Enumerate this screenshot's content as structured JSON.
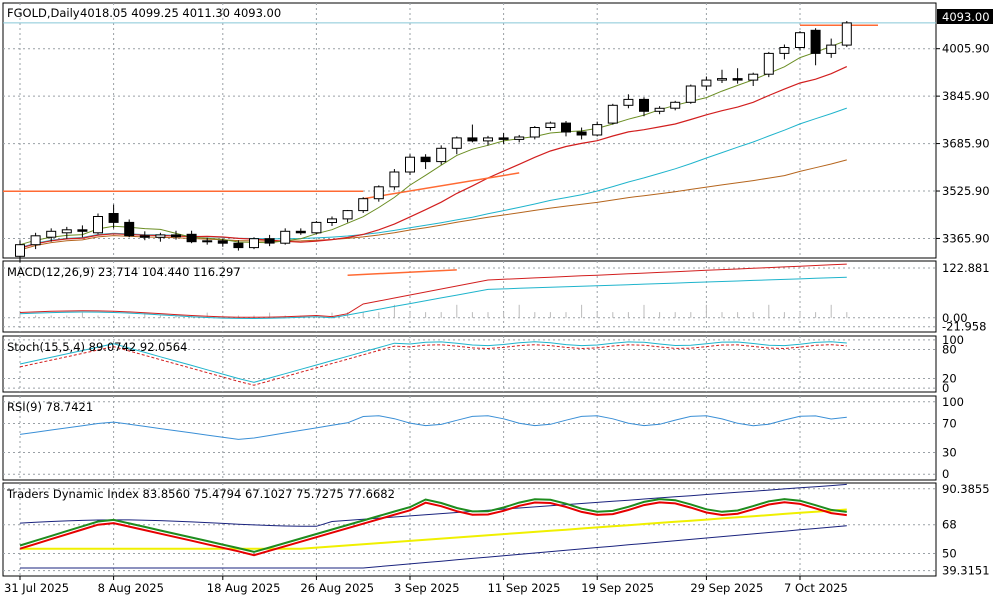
{
  "chart_data": {
    "type": "candlestick",
    "symbol": "FGOLD,Daily",
    "ohlc_header": "4018.05 4099.25 4011.30 4093.00",
    "current_price_label": "4093.00",
    "price_ticks": [
      "4005.90",
      "3845.90",
      "3685.90",
      "3525.90",
      "3365.90"
    ],
    "price_tick_values": [
      4005.9,
      3845.9,
      3685.9,
      3525.9,
      3365.9
    ],
    "date_labels": [
      "31 Jul 2025",
      "8 Aug 2025",
      "18 Aug 2025",
      "26 Aug 2025",
      "3 Sep 2025",
      "11 Sep 2025",
      "19 Sep 2025",
      "29 Sep 2025",
      "7 Oct 2025"
    ],
    "date_label_index": [
      0,
      6,
      13,
      19,
      25,
      31,
      37,
      44,
      50
    ],
    "ohlc": [
      [
        3306,
        3360,
        3285,
        3345
      ],
      [
        3345,
        3385,
        3330,
        3375
      ],
      [
        3370,
        3400,
        3355,
        3390
      ],
      [
        3385,
        3405,
        3365,
        3395
      ],
      [
        3395,
        3410,
        3370,
        3390
      ],
      [
        3385,
        3450,
        3380,
        3440
      ],
      [
        3450,
        3480,
        3400,
        3420
      ],
      [
        3420,
        3430,
        3370,
        3375
      ],
      [
        3375,
        3390,
        3360,
        3370
      ],
      [
        3370,
        3385,
        3355,
        3378
      ],
      [
        3378,
        3392,
        3362,
        3372
      ],
      [
        3380,
        3392,
        3350,
        3355
      ],
      [
        3355,
        3368,
        3345,
        3358
      ],
      [
        3358,
        3365,
        3338,
        3350
      ],
      [
        3350,
        3360,
        3325,
        3335
      ],
      [
        3335,
        3370,
        3330,
        3365
      ],
      [
        3365,
        3378,
        3340,
        3350
      ],
      [
        3350,
        3400,
        3345,
        3390
      ],
      [
        3390,
        3400,
        3378,
        3385
      ],
      [
        3385,
        3425,
        3380,
        3420
      ],
      [
        3420,
        3440,
        3408,
        3432
      ],
      [
        3432,
        3462,
        3420,
        3460
      ],
      [
        3460,
        3505,
        3452,
        3500
      ],
      [
        3500,
        3545,
        3490,
        3540
      ],
      [
        3540,
        3600,
        3530,
        3590
      ],
      [
        3590,
        3650,
        3580,
        3640
      ],
      [
        3640,
        3650,
        3600,
        3625
      ],
      [
        3625,
        3680,
        3615,
        3670
      ],
      [
        3670,
        3710,
        3650,
        3705
      ],
      [
        3705,
        3750,
        3690,
        3695
      ],
      [
        3695,
        3712,
        3680,
        3705
      ],
      [
        3705,
        3722,
        3685,
        3700
      ],
      [
        3700,
        3715,
        3690,
        3708
      ],
      [
        3708,
        3745,
        3700,
        3740
      ],
      [
        3740,
        3760,
        3730,
        3755
      ],
      [
        3755,
        3762,
        3710,
        3725
      ],
      [
        3725,
        3740,
        3700,
        3715
      ],
      [
        3715,
        3760,
        3710,
        3750
      ],
      [
        3755,
        3820,
        3750,
        3815
      ],
      [
        3815,
        3852,
        3805,
        3835
      ],
      [
        3835,
        3842,
        3778,
        3795
      ],
      [
        3795,
        3812,
        3785,
        3805
      ],
      [
        3805,
        3830,
        3798,
        3825
      ],
      [
        3825,
        3885,
        3820,
        3880
      ],
      [
        3880,
        3912,
        3865,
        3900
      ],
      [
        3900,
        3935,
        3890,
        3905
      ],
      [
        3905,
        3940,
        3888,
        3900
      ],
      [
        3900,
        3925,
        3880,
        3920
      ],
      [
        3920,
        3995,
        3910,
        3990
      ],
      [
        3990,
        4020,
        3970,
        4010
      ],
      [
        4010,
        4065,
        4000,
        4060
      ],
      [
        4068,
        4075,
        3950,
        3990
      ],
      [
        3990,
        4040,
        3975,
        4018
      ],
      [
        4018,
        4099.25,
        4011.3,
        4093
      ]
    ],
    "indicators": {
      "macd": {
        "label": "MACD(12,26,9) 23.714 104.440 116.297",
        "ticks": [
          "122.881",
          "0.00",
          "-21.958"
        ],
        "tick_values": [
          122.881,
          0,
          -21.958
        ]
      },
      "stoch": {
        "label": "Stoch(15,5,4) 89.0742 92.0564",
        "ticks": [
          "100",
          "80",
          "20",
          "0"
        ],
        "tick_values": [
          100,
          80,
          20,
          0
        ]
      },
      "rsi": {
        "label": "RSI(9) 78.7421",
        "ticks": [
          "100",
          "70",
          "30",
          "0"
        ],
        "tick_values": [
          100,
          70,
          30,
          0
        ]
      },
      "tdi": {
        "label": "Traders Dynamic Index 83.8560 75.4794 67.1027 75.7275 77.6682",
        "ticks": [
          "90.3855",
          "68",
          "50",
          "39.3151"
        ],
        "tick_values": [
          90.3855,
          68,
          50,
          39.3151
        ]
      }
    },
    "grid": true,
    "colors": {
      "up_candle": "#ffffff",
      "down_candle": "#000000",
      "ma_fast": "#6b8e23",
      "ma_mid": "#d21f1f",
      "ma_slow": "#1fb4cc",
      "ma_long": "#b5651d",
      "trendline": "#ff6a33",
      "macd_signal": "#d21f1f",
      "macd_main": "#1fb4cc",
      "stoch_main": "#1fb4cc",
      "stoch_signal": "#d21f1f",
      "rsi": "#3a8fd6",
      "tdi_band": "#1a237e",
      "tdi_price": "#1e8c1e",
      "tdi_signal": "#e60000",
      "tdi_base": "#f0f000",
      "price_line": "#87c7d8"
    }
  }
}
